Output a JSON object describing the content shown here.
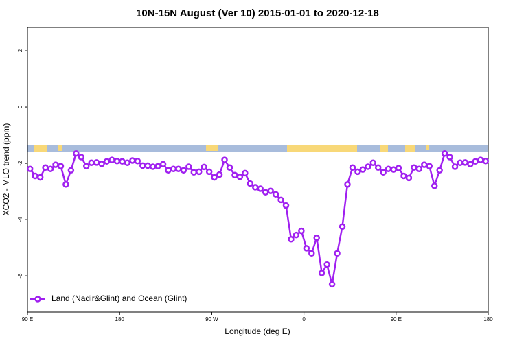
{
  "chart_data": {
    "type": "line",
    "title": "10N-15N August (Ver 10)   2015-01-01 to 2020-12-18",
    "x_label": "Longitude (deg E)",
    "y_label": "XCO2 - MLO trend (ppm)",
    "xlim": [
      90,
      540
    ],
    "xticks": [
      {
        "value": 90,
        "label": "90 E"
      },
      180,
      {
        "value": 270,
        "label": "90 W"
      },
      {
        "value": 360,
        "label": "0"
      },
      {
        "value": 450,
        "label": "90 E"
      },
      {
        "value": 540,
        "label": "180"
      }
    ],
    "ylim": [
      -7.29,
      2.83
    ],
    "yticks": [
      -6,
      -4,
      -2,
      0,
      2
    ],
    "legend": "bottom-left",
    "x": [
      92.5,
      97.5,
      102.5,
      107.5,
      112.5,
      117.5,
      122.5,
      127.5,
      132.5,
      137.5,
      142.5,
      147.5,
      152.5,
      157.5,
      162.5,
      167.5,
      172.5,
      177.5,
      182.5,
      187.5,
      192.5,
      197.5,
      202.5,
      207.5,
      212.5,
      217.5,
      222.5,
      227.5,
      232.5,
      237.5,
      242.5,
      247.5,
      252.5,
      257.5,
      262.5,
      267.5,
      272.5,
      277.5,
      282.5,
      287.5,
      292.5,
      297.5,
      302.5,
      307.5,
      312.5,
      317.5,
      322.5,
      327.5,
      332.5,
      337.5,
      342.5,
      347.5,
      352.5,
      357.5,
      362.5,
      367.5,
      372.5,
      377.5,
      382.5,
      387.5,
      392.5,
      397.5,
      402.5,
      407.5,
      412.5,
      417.5,
      422.5,
      427.5,
      432.5,
      437.5,
      442.5,
      447.5,
      452.5,
      457.5,
      462.5,
      467.5,
      472.5,
      477.5,
      482.5,
      487.5,
      492.5,
      497.5,
      502.5,
      507.5,
      512.5,
      517.5,
      522.5,
      527.5,
      532.5,
      537.5
    ],
    "series": [
      {
        "name": "Land (Nadir&Glint) and Ocean (Glint)",
        "color": "#a020f0",
        "values": [
          -2.2,
          -2.45,
          -2.5,
          -2.15,
          -2.2,
          -2.05,
          -2.1,
          -2.75,
          -2.25,
          -1.65,
          -1.78,
          -2.1,
          -1.98,
          -1.97,
          -2.02,
          -1.93,
          -1.88,
          -1.92,
          -1.93,
          -1.98,
          -1.9,
          -1.92,
          -2.08,
          -2.08,
          -2.12,
          -2.1,
          -2.03,
          -2.25,
          -2.2,
          -2.2,
          -2.25,
          -2.12,
          -2.32,
          -2.3,
          -2.13,
          -2.3,
          -2.5,
          -2.4,
          -1.88,
          -2.15,
          -2.42,
          -2.48,
          -2.35,
          -2.72,
          -2.85,
          -2.9,
          -3.03,
          -2.98,
          -3.1,
          -3.3,
          -3.5,
          -4.7,
          -4.55,
          -4.4,
          -5.02,
          -5.2,
          -4.65,
          -5.9,
          -5.6,
          -6.3,
          -5.2,
          -4.25,
          -2.75,
          -2.15,
          -2.3,
          -2.22,
          -2.12,
          -1.98,
          -2.15,
          -2.32,
          -2.2,
          -2.22,
          -2.17,
          -2.45,
          -2.52,
          -2.15,
          -2.2,
          -2.05,
          -2.1,
          -2.8,
          -2.25,
          -1.65,
          -1.78,
          -2.12,
          -1.98,
          -1.97,
          -2.03,
          -1.93,
          -1.88,
          -1.92
        ]
      }
    ]
  }
}
